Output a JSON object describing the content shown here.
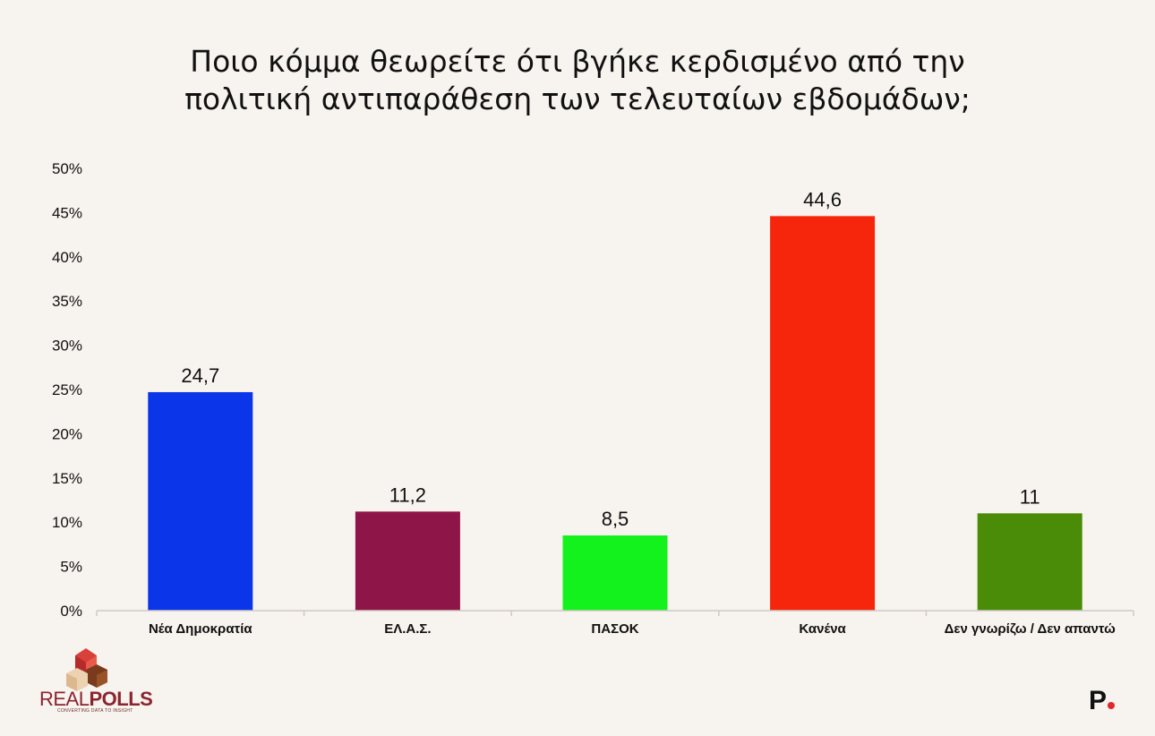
{
  "title_lines": [
    "Ποιο κόμμα θεωρείτε ότι βγήκε κερδισμένο από την",
    "πολιτική αντιπαράθεση των τελευταίων εβδομάδων;"
  ],
  "chart_data": {
    "type": "bar",
    "categories": [
      "Νέα Δημοκρατία",
      "ΕΛ.Α.Σ.",
      "ΠΑΣΟΚ",
      "Κανένα",
      "Δεν γνωρίζω / Δεν απαντώ"
    ],
    "values": [
      24.7,
      11.2,
      8.5,
      44.6,
      11
    ],
    "value_labels": [
      "24,7",
      "11,2",
      "8,5",
      "44,6",
      "11"
    ],
    "colors": [
      "#0a35e8",
      "#8e1548",
      "#14f21e",
      "#f5260c",
      "#4a8c07"
    ],
    "ylim": [
      0,
      50
    ],
    "yticks": [
      0,
      5,
      10,
      15,
      20,
      25,
      30,
      35,
      40,
      45,
      50
    ],
    "ytick_labels": [
      "0%",
      "5%",
      "10%",
      "15%",
      "20%",
      "25%",
      "30%",
      "35%",
      "40%",
      "45%",
      "50%"
    ],
    "grid": false,
    "legend": "none"
  },
  "footer": {
    "brand_part1": "REAL",
    "brand_part2": "POLLS",
    "tagline": "CONVERTING DATA TO INSIGHT",
    "publisher_logo": "P"
  }
}
